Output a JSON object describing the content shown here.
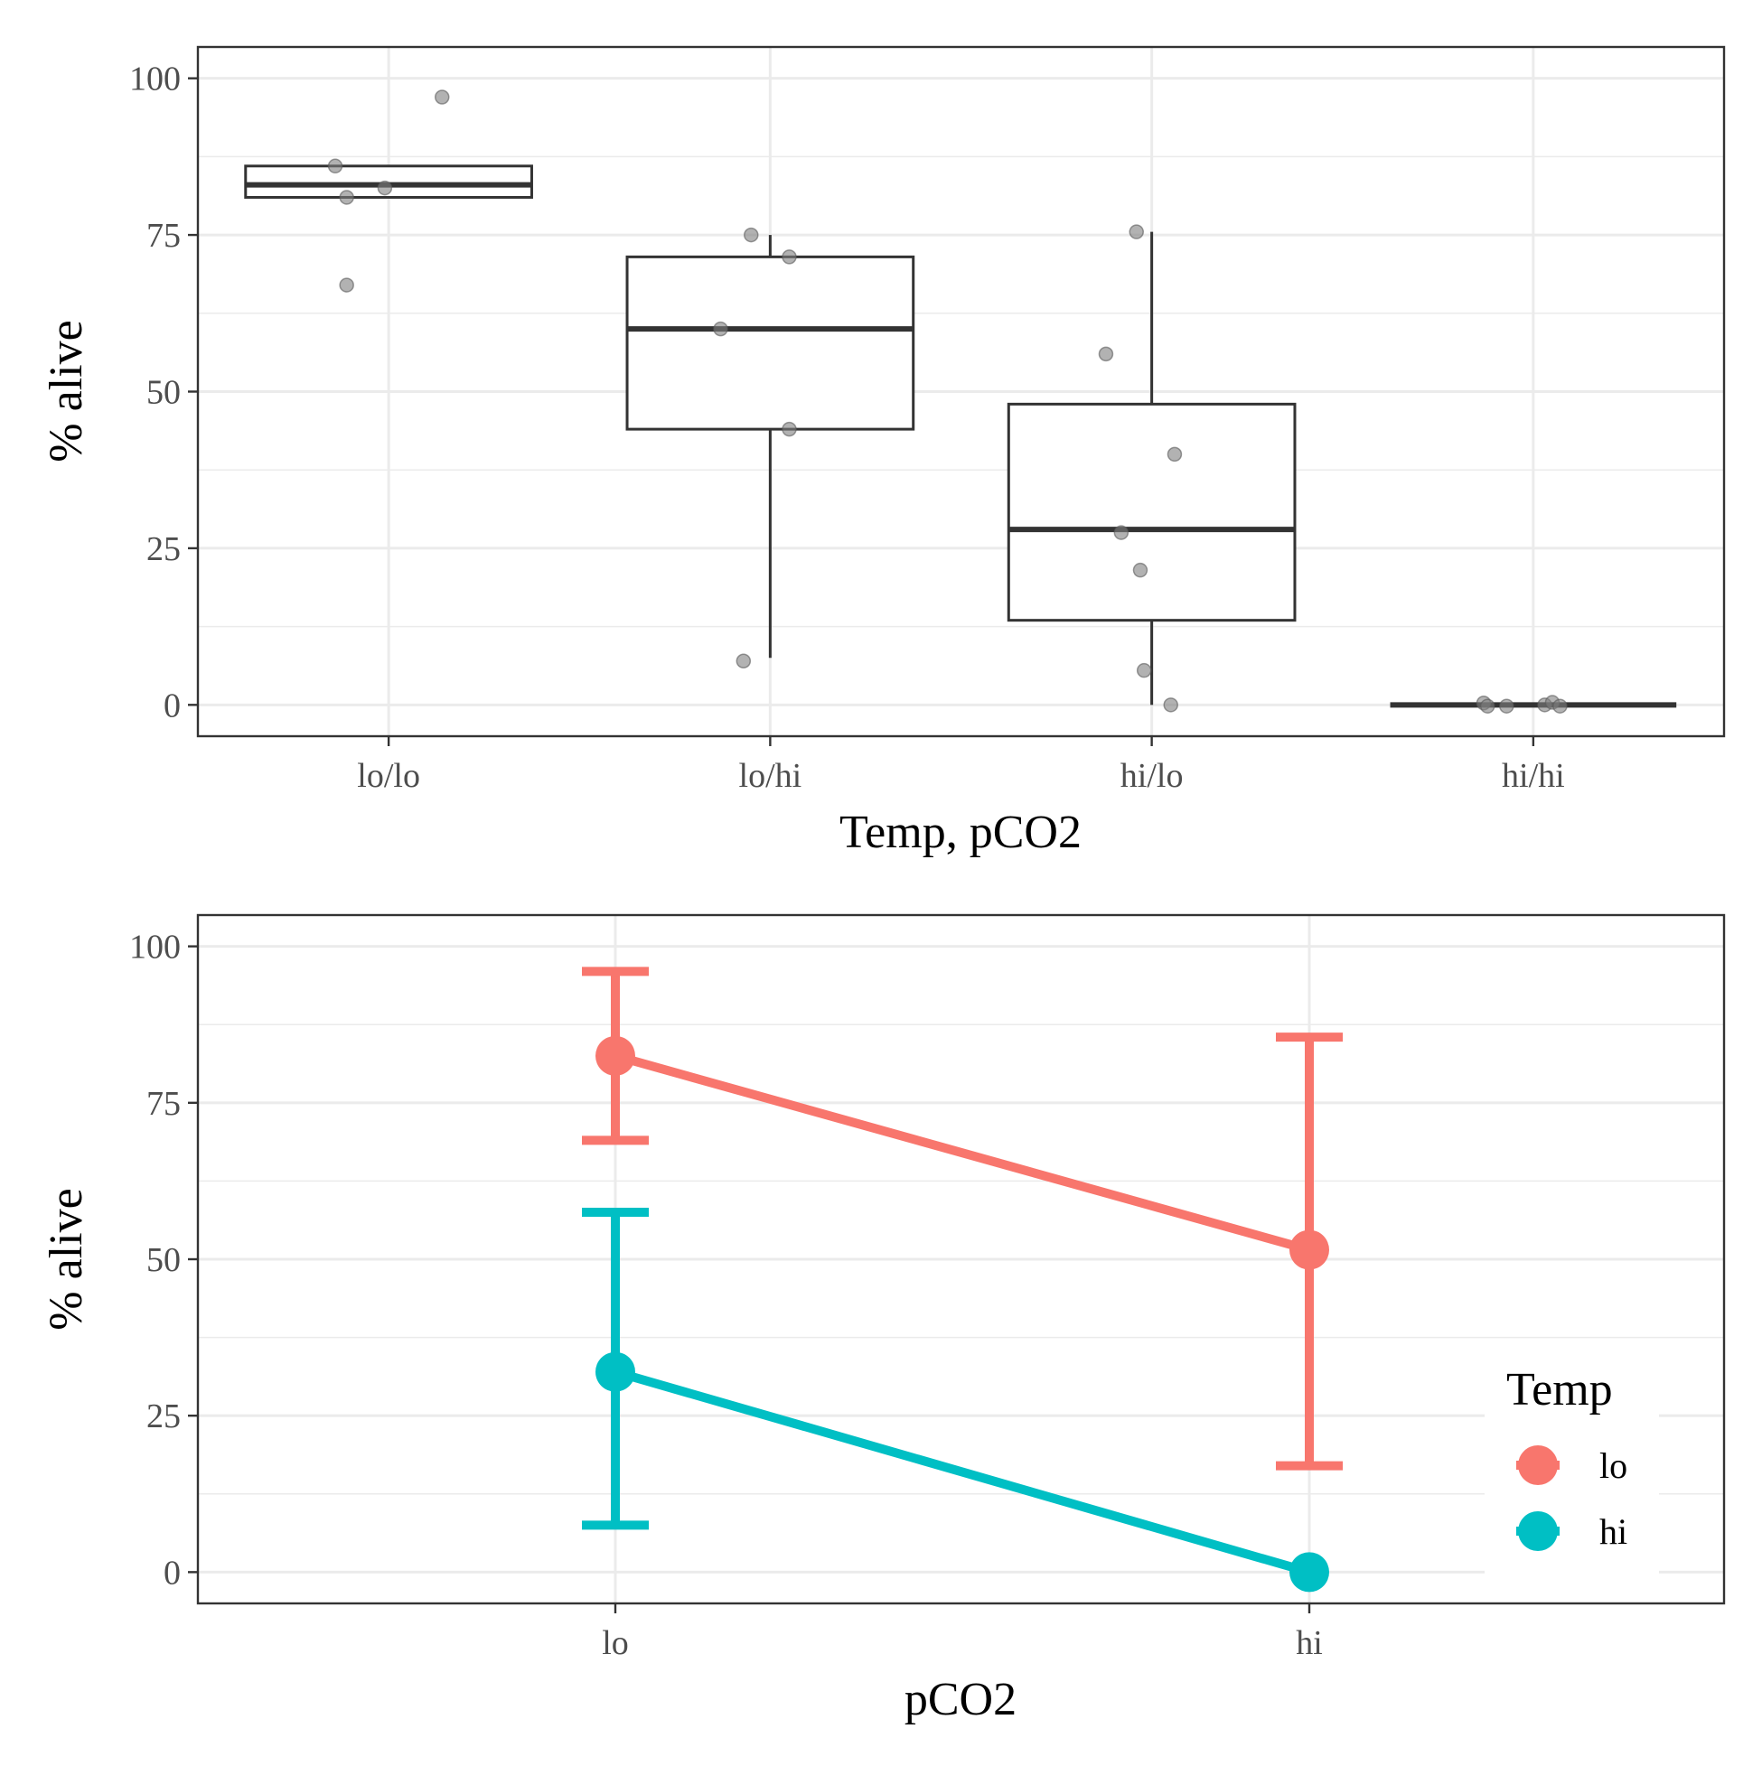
{
  "chart_data": [
    {
      "type": "box",
      "xlabel": "Temp, pCO2",
      "ylabel": "% alive",
      "ylim": [
        -5,
        105
      ],
      "yticks": [
        "0",
        "25",
        "50",
        "75",
        "100"
      ],
      "ytick_values": [
        0,
        25,
        50,
        75,
        100
      ],
      "grid": true,
      "categories": [
        "lo/lo",
        "lo/hi",
        "hi/lo",
        "hi/hi"
      ],
      "boxes": [
        {
          "category": "lo/lo",
          "min": 81,
          "q1": 81,
          "median": 83,
          "q3": 86,
          "max": 86
        },
        {
          "category": "lo/hi",
          "min": 7.5,
          "q1": 44,
          "median": 60,
          "q3": 71.5,
          "max": 75
        },
        {
          "category": "hi/lo",
          "min": 0,
          "q1": 13.5,
          "median": 28,
          "q3": 48,
          "max": 75.5
        },
        {
          "category": "hi/hi",
          "min": 0,
          "q1": 0,
          "median": 0,
          "q3": 0,
          "max": 0
        }
      ],
      "points": [
        {
          "category": "lo/lo",
          "y": 86,
          "jitter": -0.14
        },
        {
          "category": "lo/lo",
          "y": 81,
          "jitter": -0.11
        },
        {
          "category": "lo/lo",
          "y": 82.5,
          "jitter": -0.01
        },
        {
          "category": "lo/lo",
          "y": 97,
          "jitter": 0.14
        },
        {
          "category": "lo/lo",
          "y": 67,
          "jitter": -0.11
        },
        {
          "category": "lo/hi",
          "y": 75,
          "jitter": -0.05
        },
        {
          "category": "lo/hi",
          "y": 71.5,
          "jitter": 0.05
        },
        {
          "category": "lo/hi",
          "y": 60,
          "jitter": -0.13
        },
        {
          "category": "lo/hi",
          "y": 44,
          "jitter": 0.05
        },
        {
          "category": "lo/hi",
          "y": 7,
          "jitter": -0.07
        },
        {
          "category": "hi/lo",
          "y": 75.5,
          "jitter": -0.04
        },
        {
          "category": "hi/lo",
          "y": 56,
          "jitter": -0.12
        },
        {
          "category": "hi/lo",
          "y": 40,
          "jitter": 0.06
        },
        {
          "category": "hi/lo",
          "y": 27.5,
          "jitter": -0.08
        },
        {
          "category": "hi/lo",
          "y": 21.5,
          "jitter": -0.03
        },
        {
          "category": "hi/lo",
          "y": 5.5,
          "jitter": -0.02
        },
        {
          "category": "hi/lo",
          "y": 0,
          "jitter": 0.05
        },
        {
          "category": "hi/hi",
          "y": 0.3,
          "jitter": -0.13
        },
        {
          "category": "hi/hi",
          "y": -0.2,
          "jitter": -0.12
        },
        {
          "category": "hi/hi",
          "y": -0.2,
          "jitter": -0.07
        },
        {
          "category": "hi/hi",
          "y": 0,
          "jitter": 0.03
        },
        {
          "category": "hi/hi",
          "y": 0.4,
          "jitter": 0.05
        },
        {
          "category": "hi/hi",
          "y": -0.2,
          "jitter": 0.07
        }
      ],
      "colors": {
        "box": "#333333",
        "point": "#7f7f7f",
        "panel_border": "#333333",
        "grid": "#ebebeb"
      }
    },
    {
      "type": "line",
      "xlabel": "pCO2",
      "ylabel": "% alive",
      "ylim": [
        -5,
        105
      ],
      "yticks": [
        "0",
        "25",
        "50",
        "75",
        "100"
      ],
      "ytick_values": [
        0,
        25,
        50,
        75,
        100
      ],
      "grid": true,
      "categories": [
        "lo",
        "hi"
      ],
      "legend": {
        "title": "Temp",
        "position": "right-bottom-inside"
      },
      "series": [
        {
          "name": "lo",
          "color": "#F8766D",
          "values": [
            82.5,
            51.5
          ],
          "error_low": [
            69,
            17
          ],
          "error_high": [
            96,
            85.5
          ]
        },
        {
          "name": "hi",
          "color": "#00BFC4",
          "values": [
            32,
            0
          ],
          "error_low": [
            7.5,
            0
          ],
          "error_high": [
            57.5,
            0
          ]
        }
      ],
      "colors": {
        "panel_border": "#333333",
        "grid": "#ebebeb"
      }
    }
  ]
}
